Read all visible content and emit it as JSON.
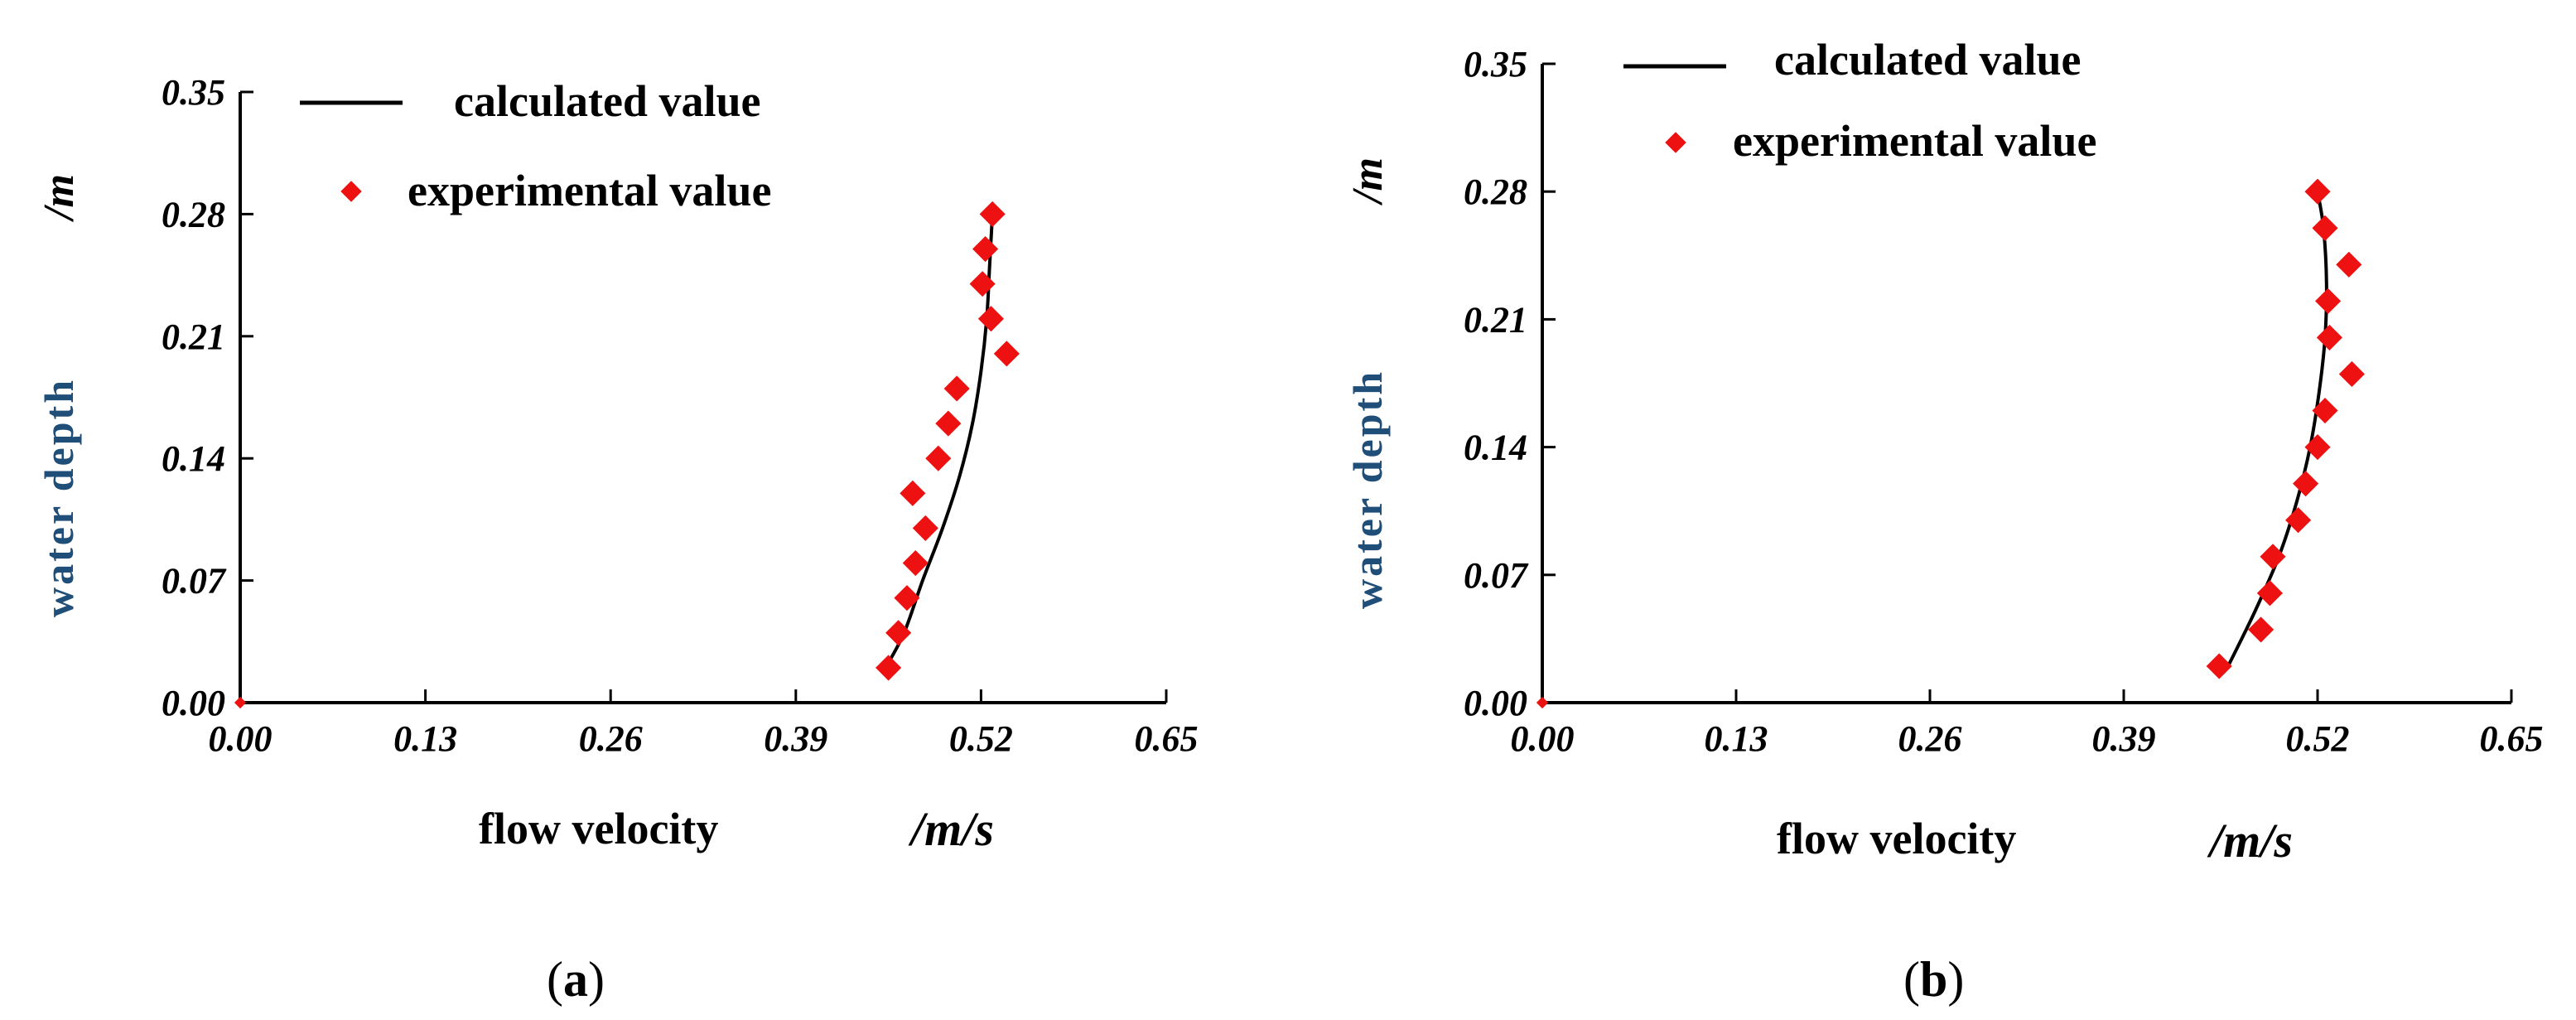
{
  "chart_data": [
    {
      "type": "line",
      "panel": "a",
      "xlabel": "flow velocity",
      "xunit": "/m/s",
      "ylabel": "water depth",
      "yunit": "/m",
      "xlim": [
        0,
        0.65
      ],
      "ylim": [
        0,
        0.35
      ],
      "xticks": [
        "0.00",
        "0.13",
        "0.26",
        "0.39",
        "0.52",
        "0.65"
      ],
      "yticks": [
        "0.00",
        "0.07",
        "0.14",
        "0.21",
        "0.28",
        "0.35"
      ],
      "legend": {
        "line": "calculated value",
        "points": "experimental value"
      },
      "series": [
        {
          "name": "calculated value",
          "kind": "line",
          "color": "#000000",
          "points": [
            [
              0.453,
              0.02
            ],
            [
              0.466,
              0.04
            ],
            [
              0.479,
              0.07
            ],
            [
              0.493,
              0.1
            ],
            [
              0.505,
              0.13
            ],
            [
              0.514,
              0.16
            ],
            [
              0.52,
              0.19
            ],
            [
              0.524,
              0.22
            ],
            [
              0.526,
              0.25
            ],
            [
              0.528,
              0.28
            ]
          ]
        },
        {
          "name": "experimental value",
          "kind": "scatter",
          "color": "#ee1111",
          "points": [
            [
              0.455,
              0.02
            ],
            [
              0.462,
              0.04
            ],
            [
              0.468,
              0.06
            ],
            [
              0.474,
              0.08
            ],
            [
              0.481,
              0.1
            ],
            [
              0.472,
              0.12
            ],
            [
              0.49,
              0.14
            ],
            [
              0.497,
              0.16
            ],
            [
              0.503,
              0.18
            ],
            [
              0.538,
              0.2
            ],
            [
              0.527,
              0.22
            ],
            [
              0.521,
              0.24
            ],
            [
              0.523,
              0.26
            ],
            [
              0.528,
              0.28
            ]
          ]
        }
      ],
      "caption": {
        "open": "(",
        "letter": "a",
        "close": ")"
      }
    },
    {
      "type": "line",
      "panel": "b",
      "xlabel": "flow velocity",
      "xunit": "/m/s",
      "ylabel": "water depth",
      "yunit": "/m",
      "xlim": [
        0,
        0.65
      ],
      "ylim": [
        0,
        0.35
      ],
      "xticks": [
        "0.00",
        "0.13",
        "0.26",
        "0.39",
        "0.52",
        "0.65"
      ],
      "yticks": [
        "0.00",
        "0.07",
        "0.14",
        "0.21",
        "0.28",
        "0.35"
      ],
      "legend": {
        "line": "calculated value",
        "points": "experimental value"
      },
      "series": [
        {
          "name": "calculated value",
          "kind": "line",
          "color": "#000000",
          "points": [
            [
              0.46,
              0.02
            ],
            [
              0.478,
              0.05
            ],
            [
              0.494,
              0.08
            ],
            [
              0.506,
              0.11
            ],
            [
              0.515,
              0.14
            ],
            [
              0.521,
              0.17
            ],
            [
              0.525,
              0.2
            ],
            [
              0.526,
              0.23
            ],
            [
              0.524,
              0.26
            ],
            [
              0.52,
              0.28
            ]
          ]
        },
        {
          "name": "experimental value",
          "kind": "scatter",
          "color": "#ee1111",
          "points": [
            [
              0.454,
              0.02
            ],
            [
              0.482,
              0.04
            ],
            [
              0.488,
              0.06
            ],
            [
              0.49,
              0.08
            ],
            [
              0.507,
              0.1
            ],
            [
              0.512,
              0.12
            ],
            [
              0.52,
              0.14
            ],
            [
              0.525,
              0.16
            ],
            [
              0.543,
              0.18
            ],
            [
              0.528,
              0.2
            ],
            [
              0.527,
              0.22
            ],
            [
              0.541,
              0.24
            ],
            [
              0.525,
              0.26
            ],
            [
              0.52,
              0.28
            ]
          ]
        }
      ],
      "caption": {
        "open": "(",
        "letter": "b",
        "close": ")"
      }
    }
  ]
}
